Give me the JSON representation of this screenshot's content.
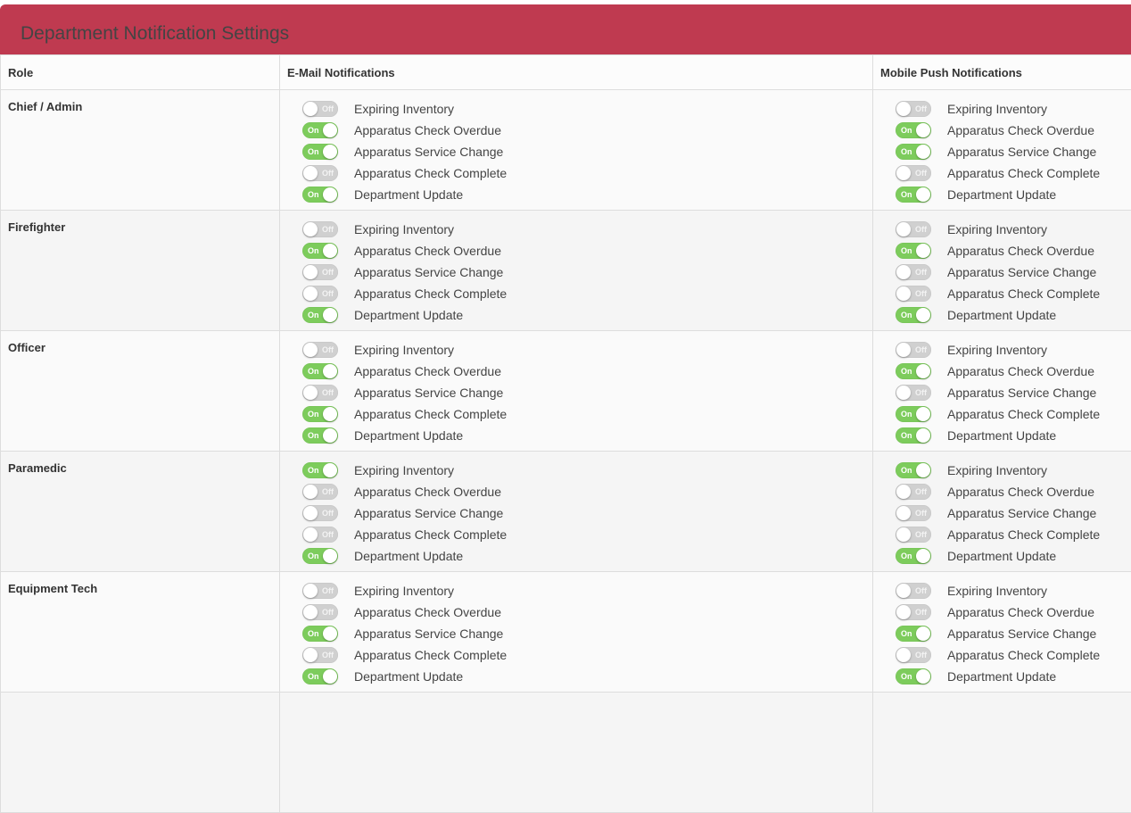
{
  "title": "Department Notification Settings",
  "columns": {
    "role": "Role",
    "email": "E-Mail Notifications",
    "push": "Mobile Push Notifications"
  },
  "toggle_labels": {
    "on": "On",
    "off": "Off"
  },
  "notification_types": [
    "Expiring Inventory",
    "Apparatus Check Overdue",
    "Apparatus Service Change",
    "Apparatus Check Complete",
    "Department Update"
  ],
  "colors": {
    "header": "#bf3a50",
    "toggle_on": "#7dcc5c",
    "toggle_off": "#d0d0d0"
  },
  "roles": [
    {
      "name": "Chief / Admin",
      "email": [
        false,
        true,
        true,
        false,
        true
      ],
      "push": [
        false,
        true,
        true,
        false,
        true
      ]
    },
    {
      "name": "Firefighter",
      "email": [
        false,
        true,
        false,
        false,
        true
      ],
      "push": [
        false,
        true,
        false,
        false,
        true
      ]
    },
    {
      "name": "Officer",
      "email": [
        false,
        true,
        false,
        true,
        true
      ],
      "push": [
        false,
        true,
        false,
        true,
        true
      ]
    },
    {
      "name": "Paramedic",
      "email": [
        true,
        false,
        false,
        false,
        true
      ],
      "push": [
        true,
        false,
        false,
        false,
        true
      ]
    },
    {
      "name": "Equipment Tech",
      "email": [
        false,
        false,
        true,
        false,
        true
      ],
      "push": [
        false,
        false,
        true,
        false,
        true
      ]
    }
  ]
}
